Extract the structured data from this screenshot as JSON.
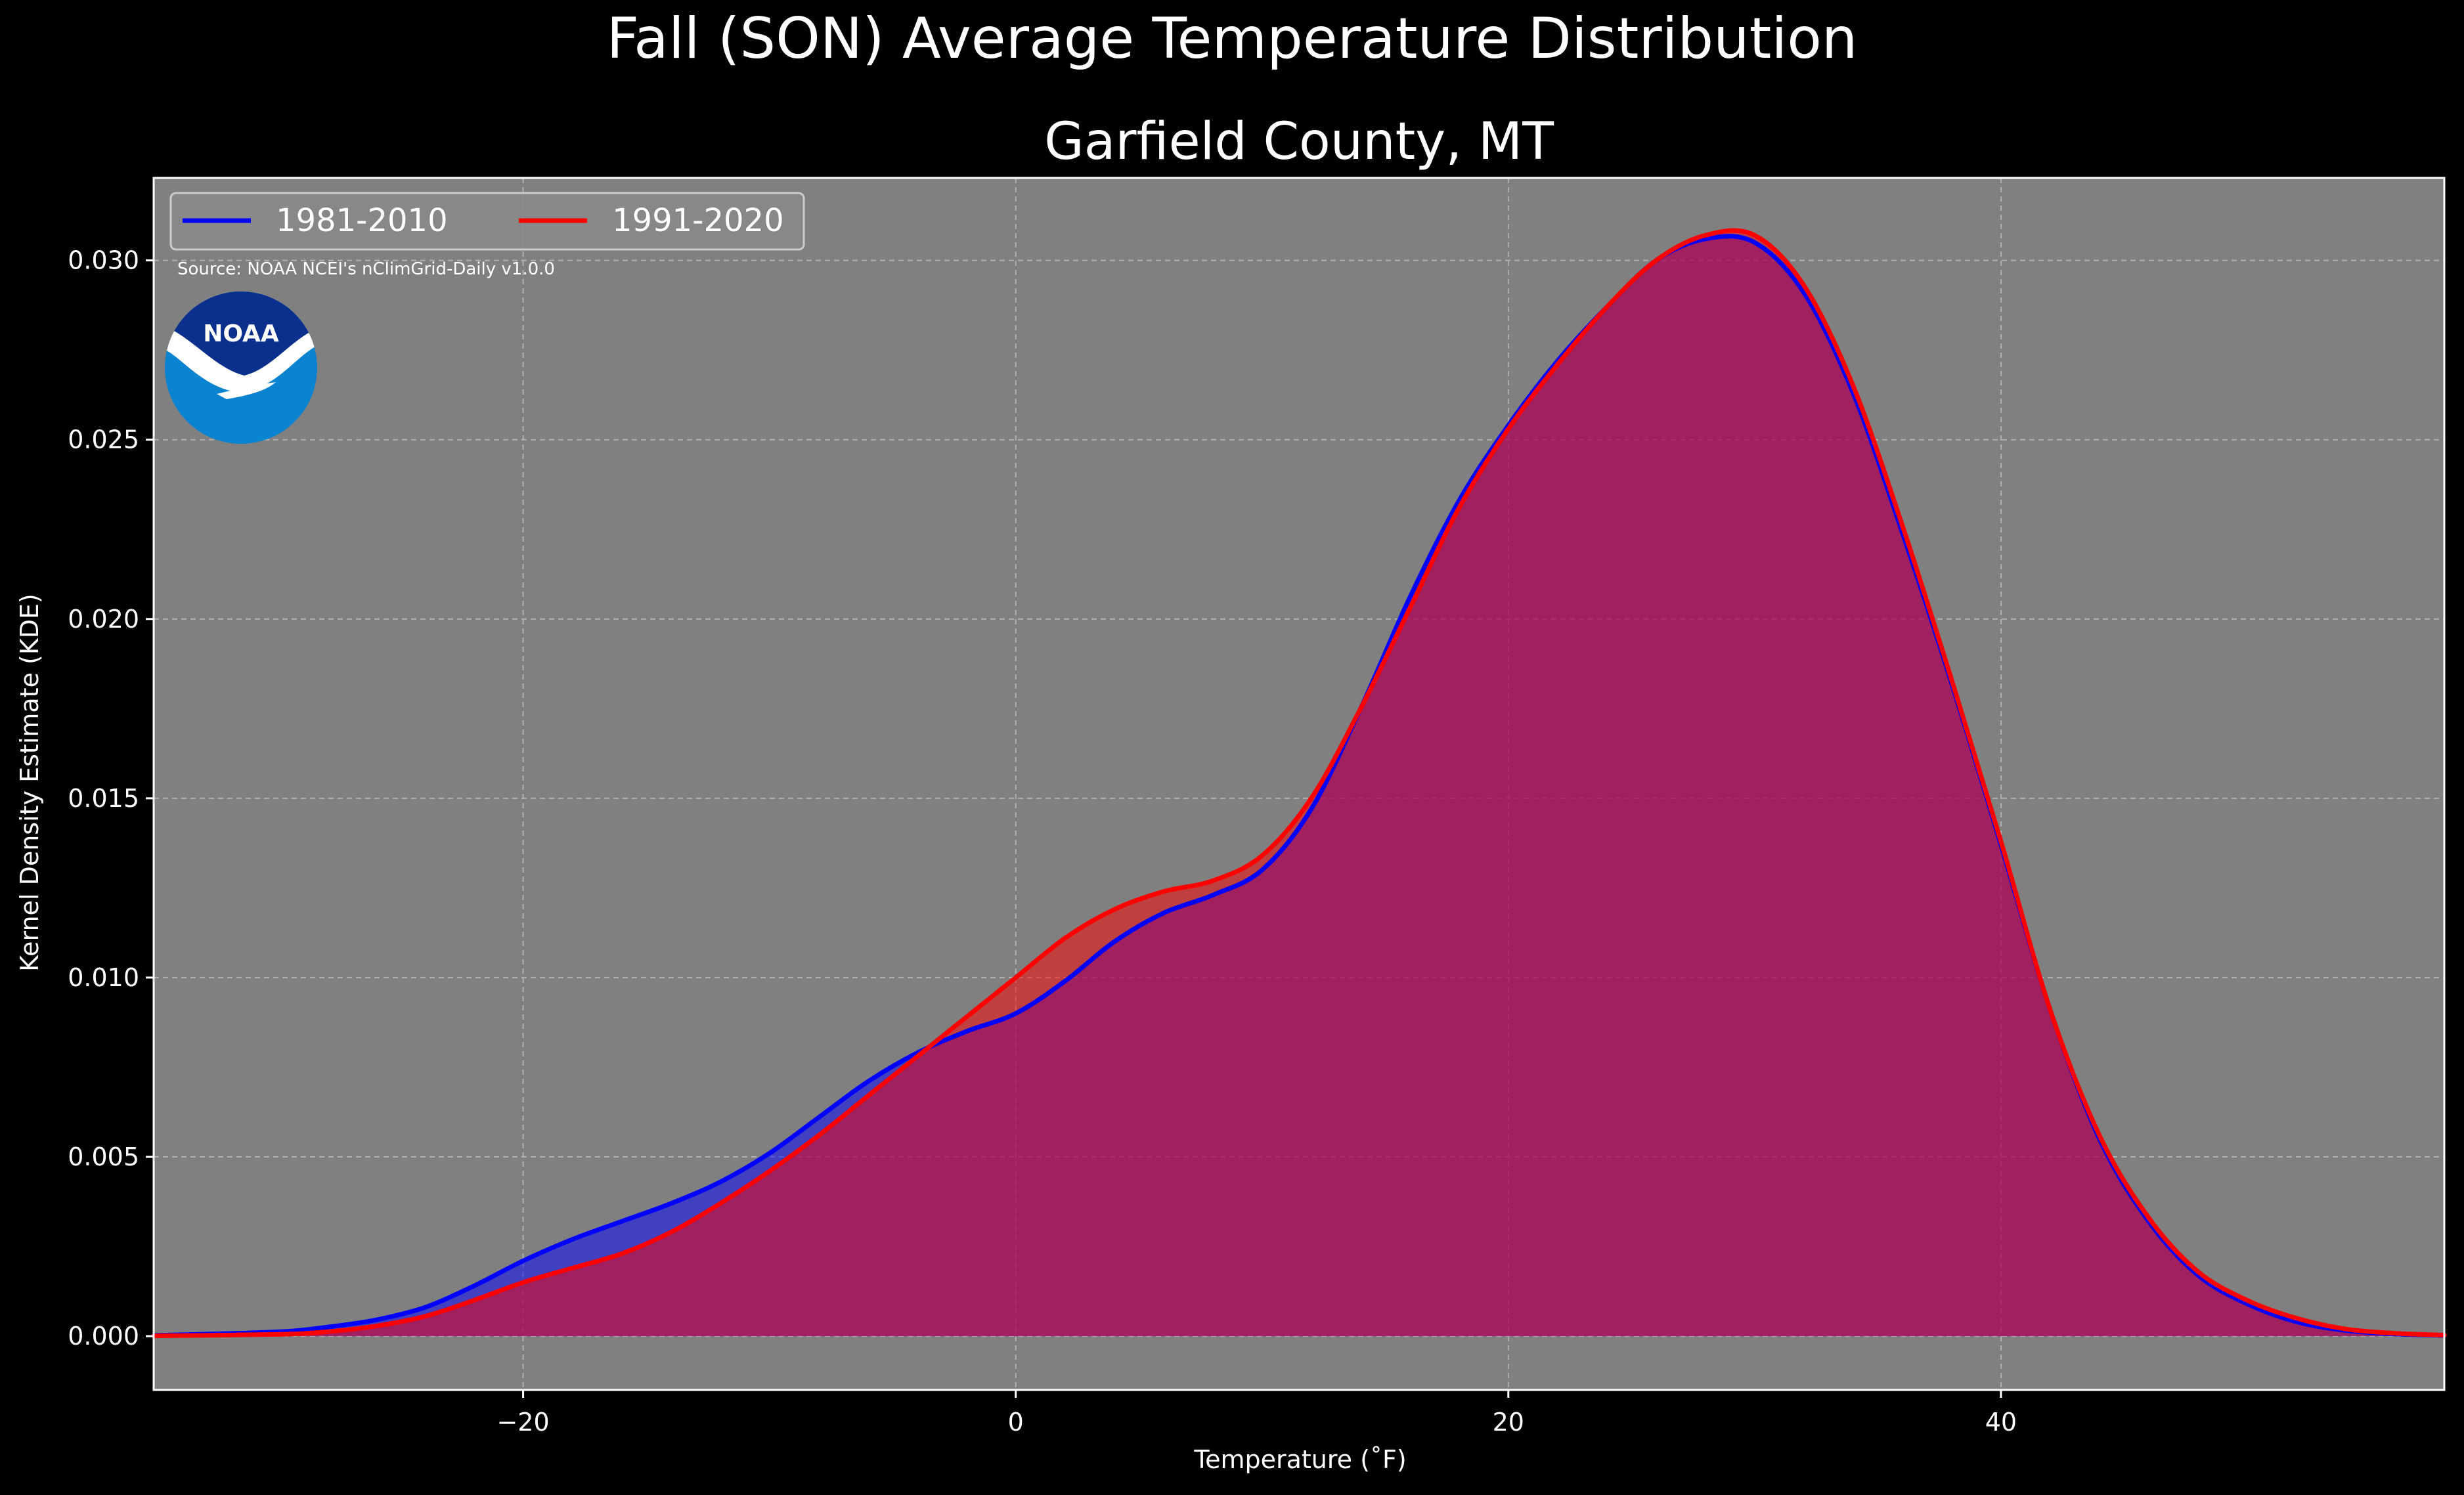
{
  "chart_data": {
    "type": "area",
    "title": "Fall (SON) Average Temperature Distribution",
    "subtitle": "Garfield County, MT",
    "xlabel": "Temperature (˚F)",
    "ylabel": "Kernel Density Estimate (KDE)",
    "xlim": [
      -35,
      58
    ],
    "ylim": [
      -0.0015,
      0.0323
    ],
    "x_ticks": [
      -20,
      0,
      20,
      40
    ],
    "x_tick_labels": [
      "−20",
      "0",
      "20",
      "40"
    ],
    "y_ticks": [
      0,
      0.005,
      0.01,
      0.015,
      0.02,
      0.025,
      0.03
    ],
    "y_tick_labels": [
      "0.000",
      "0.005",
      "0.010",
      "0.015",
      "0.020",
      "0.025",
      "0.030"
    ],
    "grid": true,
    "legend_position": "top-left",
    "annotation": "Source: NOAA NCEI's nClimGrid-Daily v1.0.0",
    "logo_text": "NOAA",
    "colors": {
      "figure_bg": "#000000",
      "axes_bg": "#808080",
      "series_1": "#0000ff",
      "series_2": "#ff0000",
      "logo_dark": "#0a2f8c",
      "logo_light": "#0a84d0"
    },
    "series": [
      {
        "name": "1981-2010",
        "color": "#0000ff",
        "x": [
          -35,
          -30,
          -28,
          -26,
          -24,
          -22,
          -20,
          -18,
          -16,
          -14,
          -12,
          -10,
          -8,
          -6,
          -4,
          -2,
          0,
          2,
          4,
          6,
          8,
          10,
          12,
          14,
          16,
          18,
          20,
          22,
          24,
          26,
          28,
          30,
          32,
          34,
          36,
          38,
          40,
          42,
          44,
          46,
          48,
          50,
          52,
          54,
          56,
          58
        ],
        "y": [
          2e-05,
          0.00012,
          0.00025,
          0.00045,
          0.0008,
          0.0014,
          0.0021,
          0.0027,
          0.0032,
          0.0037,
          0.0043,
          0.0051,
          0.0061,
          0.0071,
          0.0079,
          0.0085,
          0.009,
          0.0099,
          0.011,
          0.0118,
          0.0123,
          0.013,
          0.0147,
          0.0175,
          0.0206,
          0.0233,
          0.0254,
          0.0272,
          0.0287,
          0.03,
          0.0306,
          0.0305,
          0.0291,
          0.0263,
          0.0224,
          0.0182,
          0.0137,
          0.0091,
          0.0055,
          0.0032,
          0.0017,
          0.0009,
          0.0004,
          0.00016,
          6e-05,
          2e-05
        ]
      },
      {
        "name": "1991-2020",
        "color": "#ff0000",
        "x": [
          -35,
          -30,
          -28,
          -26,
          -24,
          -22,
          -20,
          -18,
          -16,
          -14,
          -12,
          -10,
          -8,
          -6,
          -4,
          -2,
          0,
          2,
          4,
          6,
          8,
          10,
          12,
          14,
          16,
          18,
          20,
          22,
          24,
          26,
          28,
          30,
          32,
          34,
          36,
          38,
          40,
          42,
          44,
          46,
          48,
          50,
          52,
          54,
          56,
          58
        ],
        "y": [
          1e-05,
          5e-05,
          0.00012,
          0.00028,
          0.00055,
          0.001,
          0.0015,
          0.0019,
          0.0023,
          0.0029,
          0.0037,
          0.0046,
          0.0056,
          0.0067,
          0.0078,
          0.0089,
          0.01,
          0.0111,
          0.0119,
          0.0124,
          0.0127,
          0.0134,
          0.015,
          0.0175,
          0.0203,
          0.0231,
          0.0253,
          0.0271,
          0.0287,
          0.03,
          0.0307,
          0.0307,
          0.0293,
          0.0265,
          0.0226,
          0.0183,
          0.0138,
          0.0091,
          0.0056,
          0.0033,
          0.0018,
          0.001,
          0.0005,
          0.0002,
          8e-05,
          3e-05
        ]
      }
    ]
  }
}
